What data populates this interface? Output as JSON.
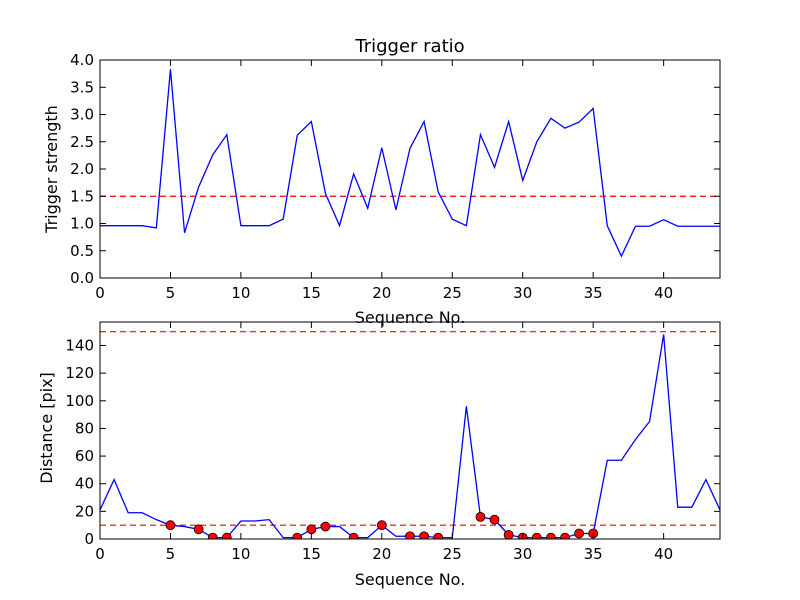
{
  "chart_data": [
    {
      "type": "line",
      "title": "Trigger ratio",
      "xlabel": "Sequence No.",
      "ylabel": "Trigger strength",
      "xlim": [
        0,
        44
      ],
      "ylim": [
        0,
        4.0
      ],
      "x_ticks": [
        "0",
        "5",
        "10",
        "15",
        "20",
        "25",
        "30",
        "35",
        "40"
      ],
      "y_ticks": [
        "0.0",
        "0.5",
        "1.0",
        "1.5",
        "2.0",
        "2.5",
        "3.0",
        "3.5",
        "4.0"
      ],
      "grid": false,
      "series": [
        {
          "color": "#0000ff",
          "x": [
            0,
            1,
            2,
            3,
            4,
            5,
            6,
            7,
            8,
            9,
            10,
            11,
            12,
            13,
            14,
            15,
            16,
            17,
            18,
            19,
            20,
            21,
            22,
            23,
            24,
            25,
            26,
            27,
            28,
            29,
            30,
            31,
            32,
            33,
            34,
            35,
            36,
            37,
            38,
            39,
            40,
            41,
            42,
            43,
            44
          ],
          "y": [
            0.96,
            0.96,
            0.96,
            0.96,
            0.92,
            3.83,
            0.83,
            1.67,
            2.26,
            2.63,
            0.96,
            0.96,
            0.96,
            1.08,
            2.62,
            2.87,
            1.55,
            0.96,
            1.91,
            1.28,
            2.39,
            1.25,
            2.38,
            2.87,
            1.58,
            1.08,
            0.96,
            2.63,
            2.03,
            2.87,
            1.79,
            2.5,
            2.93,
            2.75,
            2.86,
            3.11,
            0.96,
            0.4,
            0.95,
            0.95,
            1.07,
            0.95,
            0.95,
            0.95,
            0.95
          ]
        }
      ],
      "thresholds": [
        {
          "y": 1.5,
          "color": "#ff0000",
          "style": "dashed"
        }
      ]
    },
    {
      "type": "line",
      "title": "",
      "xlabel": "Sequence No.",
      "ylabel": "Distance [pix]",
      "xlim": [
        0,
        44
      ],
      "ylim": [
        0,
        157
      ],
      "x_ticks": [
        "0",
        "5",
        "10",
        "15",
        "20",
        "25",
        "30",
        "35",
        "40"
      ],
      "y_ticks": [
        "0",
        "20",
        "40",
        "60",
        "80",
        "100",
        "120",
        "140"
      ],
      "grid": false,
      "series": [
        {
          "color": "#0000ff",
          "x": [
            0,
            1,
            2,
            3,
            4,
            5,
            6,
            7,
            8,
            9,
            10,
            11,
            12,
            13,
            14,
            15,
            16,
            17,
            18,
            19,
            20,
            21,
            22,
            23,
            24,
            25,
            26,
            27,
            28,
            29,
            30,
            31,
            32,
            33,
            34,
            35,
            36,
            37,
            38,
            39,
            40,
            41,
            42,
            43,
            44
          ],
          "y": [
            21,
            43,
            19,
            19,
            14,
            10,
            9,
            7,
            1,
            1,
            13,
            13,
            14,
            1,
            1,
            7,
            9,
            9,
            1,
            1,
            10,
            2,
            2,
            2,
            1,
            1,
            96,
            16,
            14,
            3,
            1,
            1,
            1,
            1,
            4,
            4,
            57,
            57,
            72,
            85,
            148,
            23,
            23,
            43,
            21
          ]
        },
        {
          "color": "#ff0000",
          "marker": "circle",
          "x": [
            5,
            7,
            8,
            9,
            14,
            15,
            16,
            18,
            20,
            22,
            23,
            24,
            27,
            28,
            29,
            30,
            31,
            32,
            33,
            34,
            35
          ],
          "y": [
            10,
            7,
            1,
            1,
            1,
            7,
            9,
            1,
            10,
            2,
            2,
            1,
            16,
            14,
            3,
            1,
            1,
            1,
            1,
            4,
            4
          ]
        }
      ],
      "thresholds": [
        {
          "y": 150,
          "color": "#ff0000",
          "style": "dashed"
        },
        {
          "y": 10,
          "color": "#ff0000",
          "style": "dashed"
        }
      ]
    }
  ]
}
